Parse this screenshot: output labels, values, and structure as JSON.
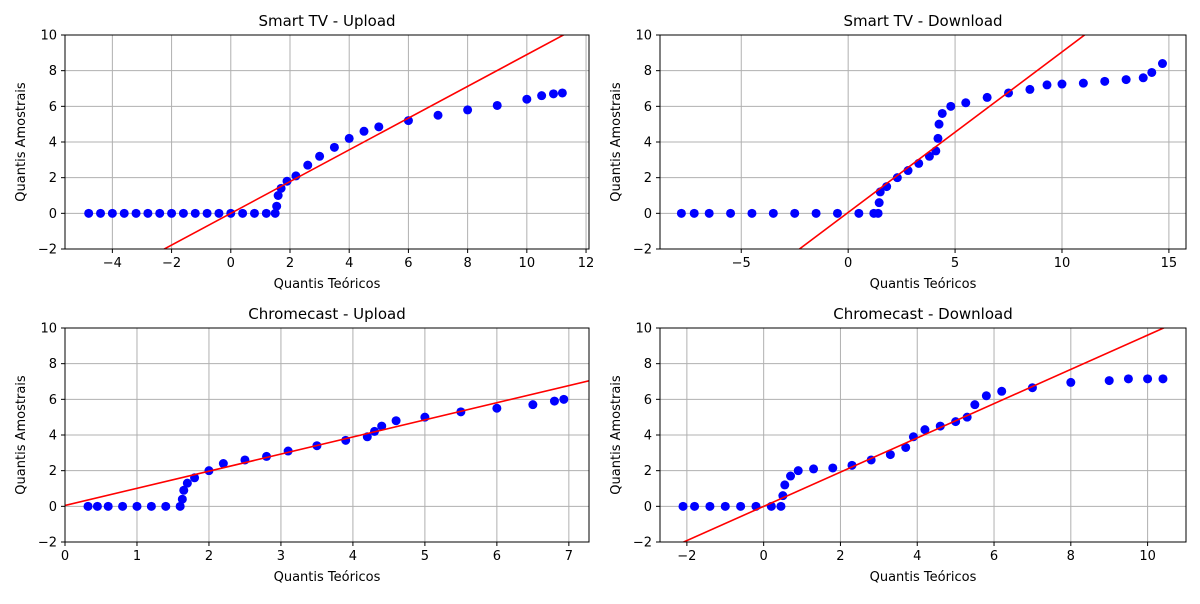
{
  "chart_data": [
    {
      "type": "scatter",
      "title": "Smart TV - Upload",
      "xlabel": "Quantis Teóricos",
      "ylabel": "Quantis Amostrais",
      "xlim": [
        -5.6,
        12.1
      ],
      "ylim": [
        -2,
        10
      ],
      "xticks": [
        -4,
        -2,
        0,
        2,
        4,
        6,
        8,
        10,
        12
      ],
      "yticks": [
        -2,
        0,
        2,
        4,
        6,
        8,
        10
      ],
      "grid": true,
      "points": [
        [
          -4.8,
          0
        ],
        [
          -4.4,
          0
        ],
        [
          -4.0,
          0
        ],
        [
          -3.6,
          0
        ],
        [
          -3.2,
          0
        ],
        [
          -2.8,
          0
        ],
        [
          -2.4,
          0
        ],
        [
          -2.0,
          0
        ],
        [
          -1.6,
          0
        ],
        [
          -1.2,
          0
        ],
        [
          -0.8,
          0
        ],
        [
          -0.4,
          0
        ],
        [
          0.0,
          0
        ],
        [
          0.4,
          0
        ],
        [
          0.8,
          0
        ],
        [
          1.2,
          0
        ],
        [
          1.5,
          0
        ],
        [
          1.55,
          0.4
        ],
        [
          1.6,
          1.0
        ],
        [
          1.7,
          1.4
        ],
        [
          1.9,
          1.8
        ],
        [
          2.2,
          2.1
        ],
        [
          2.6,
          2.7
        ],
        [
          3.0,
          3.2
        ],
        [
          3.5,
          3.7
        ],
        [
          4.0,
          4.2
        ],
        [
          4.5,
          4.6
        ],
        [
          5.0,
          4.85
        ],
        [
          6.0,
          5.2
        ],
        [
          7.0,
          5.5
        ],
        [
          8.0,
          5.8
        ],
        [
          9.0,
          6.05
        ],
        [
          10.0,
          6.4
        ],
        [
          10.5,
          6.6
        ],
        [
          10.9,
          6.7
        ],
        [
          11.2,
          6.75
        ]
      ],
      "fit_line": {
        "slope": 0.89,
        "intercept": 0.0
      }
    },
    {
      "type": "scatter",
      "title": "Smart TV - Download",
      "xlabel": "Quantis Teóricos",
      "ylabel": "Quantis Amostrais",
      "xlim": [
        -8.8,
        15.8
      ],
      "ylim": [
        -2,
        10
      ],
      "xticks": [
        -5,
        0,
        5,
        10,
        15
      ],
      "yticks": [
        -2,
        0,
        2,
        4,
        6,
        8,
        10
      ],
      "grid": true,
      "points": [
        [
          -7.8,
          0
        ],
        [
          -7.2,
          0
        ],
        [
          -6.5,
          0
        ],
        [
          -5.5,
          0
        ],
        [
          -4.5,
          0
        ],
        [
          -3.5,
          0
        ],
        [
          -2.5,
          0
        ],
        [
          -1.5,
          0
        ],
        [
          -0.5,
          0
        ],
        [
          0.5,
          0
        ],
        [
          1.2,
          0
        ],
        [
          1.4,
          0
        ],
        [
          1.45,
          0.6
        ],
        [
          1.5,
          1.2
        ],
        [
          1.8,
          1.5
        ],
        [
          2.3,
          2.0
        ],
        [
          2.8,
          2.4
        ],
        [
          3.3,
          2.8
        ],
        [
          3.8,
          3.2
        ],
        [
          4.1,
          3.5
        ],
        [
          4.2,
          4.2
        ],
        [
          4.25,
          5.0
        ],
        [
          4.4,
          5.6
        ],
        [
          4.8,
          6.0
        ],
        [
          5.5,
          6.2
        ],
        [
          6.5,
          6.5
        ],
        [
          7.5,
          6.75
        ],
        [
          8.5,
          6.95
        ],
        [
          9.3,
          7.2
        ],
        [
          10.0,
          7.25
        ],
        [
          11.0,
          7.3
        ],
        [
          12.0,
          7.4
        ],
        [
          13.0,
          7.5
        ],
        [
          13.8,
          7.6
        ],
        [
          14.2,
          7.9
        ],
        [
          14.7,
          8.4
        ]
      ],
      "fit_line": {
        "slope": 0.9,
        "intercept": 0.05
      }
    },
    {
      "type": "scatter",
      "title": "Chromecast - Upload",
      "xlabel": "Quantis Teóricos",
      "ylabel": "Quantis Amostrais",
      "xlim": [
        0.0,
        7.28
      ],
      "ylim": [
        -2,
        10
      ],
      "xticks": [
        0,
        1,
        2,
        3,
        4,
        5,
        6,
        7
      ],
      "yticks": [
        -2,
        0,
        2,
        4,
        6,
        8,
        10
      ],
      "grid": true,
      "points": [
        [
          0.32,
          0
        ],
        [
          0.45,
          0
        ],
        [
          0.6,
          0
        ],
        [
          0.8,
          0
        ],
        [
          1.0,
          0
        ],
        [
          1.2,
          0
        ],
        [
          1.4,
          0
        ],
        [
          1.6,
          0
        ],
        [
          1.63,
          0.4
        ],
        [
          1.65,
          0.9
        ],
        [
          1.7,
          1.3
        ],
        [
          1.8,
          1.6
        ],
        [
          2.0,
          2.0
        ],
        [
          2.2,
          2.4
        ],
        [
          2.5,
          2.6
        ],
        [
          2.8,
          2.8
        ],
        [
          3.1,
          3.1
        ],
        [
          3.5,
          3.4
        ],
        [
          3.9,
          3.7
        ],
        [
          4.2,
          3.9
        ],
        [
          4.3,
          4.2
        ],
        [
          4.4,
          4.5
        ],
        [
          4.6,
          4.8
        ],
        [
          5.0,
          5.0
        ],
        [
          5.5,
          5.3
        ],
        [
          6.0,
          5.5
        ],
        [
          6.5,
          5.7
        ],
        [
          6.8,
          5.9
        ],
        [
          6.93,
          6.0
        ]
      ],
      "fit_line": {
        "slope": 0.96,
        "intercept": 0.05
      }
    },
    {
      "type": "scatter",
      "title": "Chromecast - Download",
      "xlabel": "Quantis Teóricos",
      "ylabel": "Quantis Amostrais",
      "xlim": [
        -2.7,
        11.0
      ],
      "ylim": [
        -2,
        10
      ],
      "xticks": [
        -2,
        0,
        2,
        4,
        6,
        8,
        10
      ],
      "yticks": [
        -2,
        0,
        2,
        4,
        6,
        8,
        10
      ],
      "grid": true,
      "points": [
        [
          -2.1,
          0
        ],
        [
          -1.8,
          0
        ],
        [
          -1.4,
          0
        ],
        [
          -1.0,
          0
        ],
        [
          -0.6,
          0
        ],
        [
          -0.2,
          0
        ],
        [
          0.2,
          0
        ],
        [
          0.45,
          0
        ],
        [
          0.5,
          0.6
        ],
        [
          0.55,
          1.2
        ],
        [
          0.7,
          1.7
        ],
        [
          0.9,
          2.0
        ],
        [
          1.3,
          2.1
        ],
        [
          1.8,
          2.15
        ],
        [
          2.3,
          2.3
        ],
        [
          2.8,
          2.6
        ],
        [
          3.3,
          2.9
        ],
        [
          3.7,
          3.3
        ],
        [
          3.9,
          3.9
        ],
        [
          4.2,
          4.3
        ],
        [
          4.6,
          4.5
        ],
        [
          5.0,
          4.75
        ],
        [
          5.3,
          5.0
        ],
        [
          5.5,
          5.7
        ],
        [
          5.8,
          6.2
        ],
        [
          6.2,
          6.45
        ],
        [
          7.0,
          6.65
        ],
        [
          8.0,
          6.95
        ],
        [
          9.0,
          7.05
        ],
        [
          9.5,
          7.15
        ],
        [
          10.0,
          7.15
        ],
        [
          10.4,
          7.15
        ]
      ],
      "fit_line": {
        "slope": 0.96,
        "intercept": 0.0
      }
    }
  ]
}
